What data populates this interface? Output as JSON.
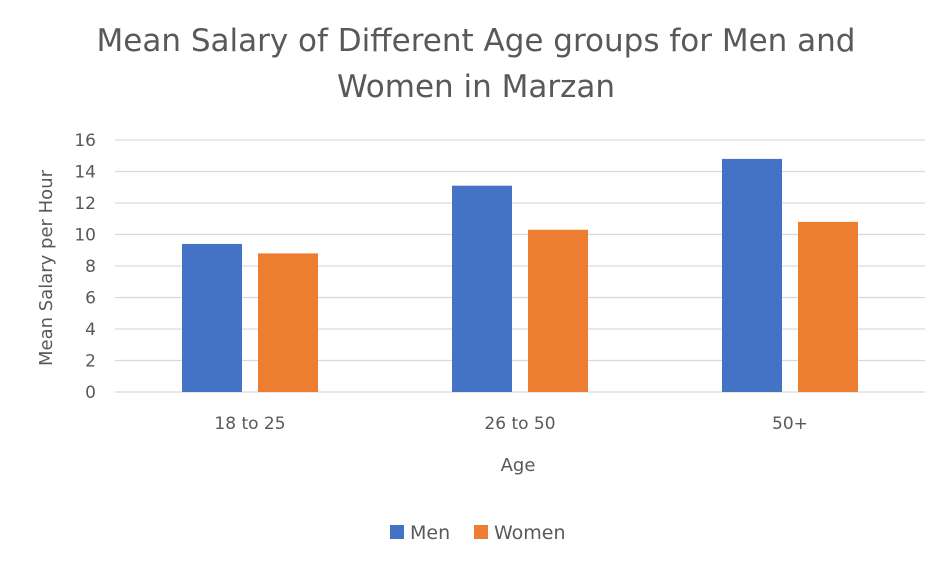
{
  "chart_data": {
    "type": "bar",
    "title_lines": [
      "Mean Salary of Different Age groups for Men and",
      "Women in Marzan"
    ],
    "xlabel": "Age",
    "ylabel": "Mean Salary per Hour",
    "categories": [
      "18 to 25",
      "26 to 50",
      "50+"
    ],
    "series": [
      {
        "name": "Men",
        "color": "#4472C4",
        "values": [
          9.4,
          13.1,
          14.8
        ]
      },
      {
        "name": "Women",
        "color": "#ED7D31",
        "values": [
          8.8,
          10.3,
          10.8
        ]
      }
    ],
    "ylim": [
      0,
      16
    ],
    "yticks": [
      0,
      2,
      4,
      6,
      8,
      10,
      12,
      14,
      16
    ],
    "grid": true,
    "legend_position": "bottom"
  }
}
